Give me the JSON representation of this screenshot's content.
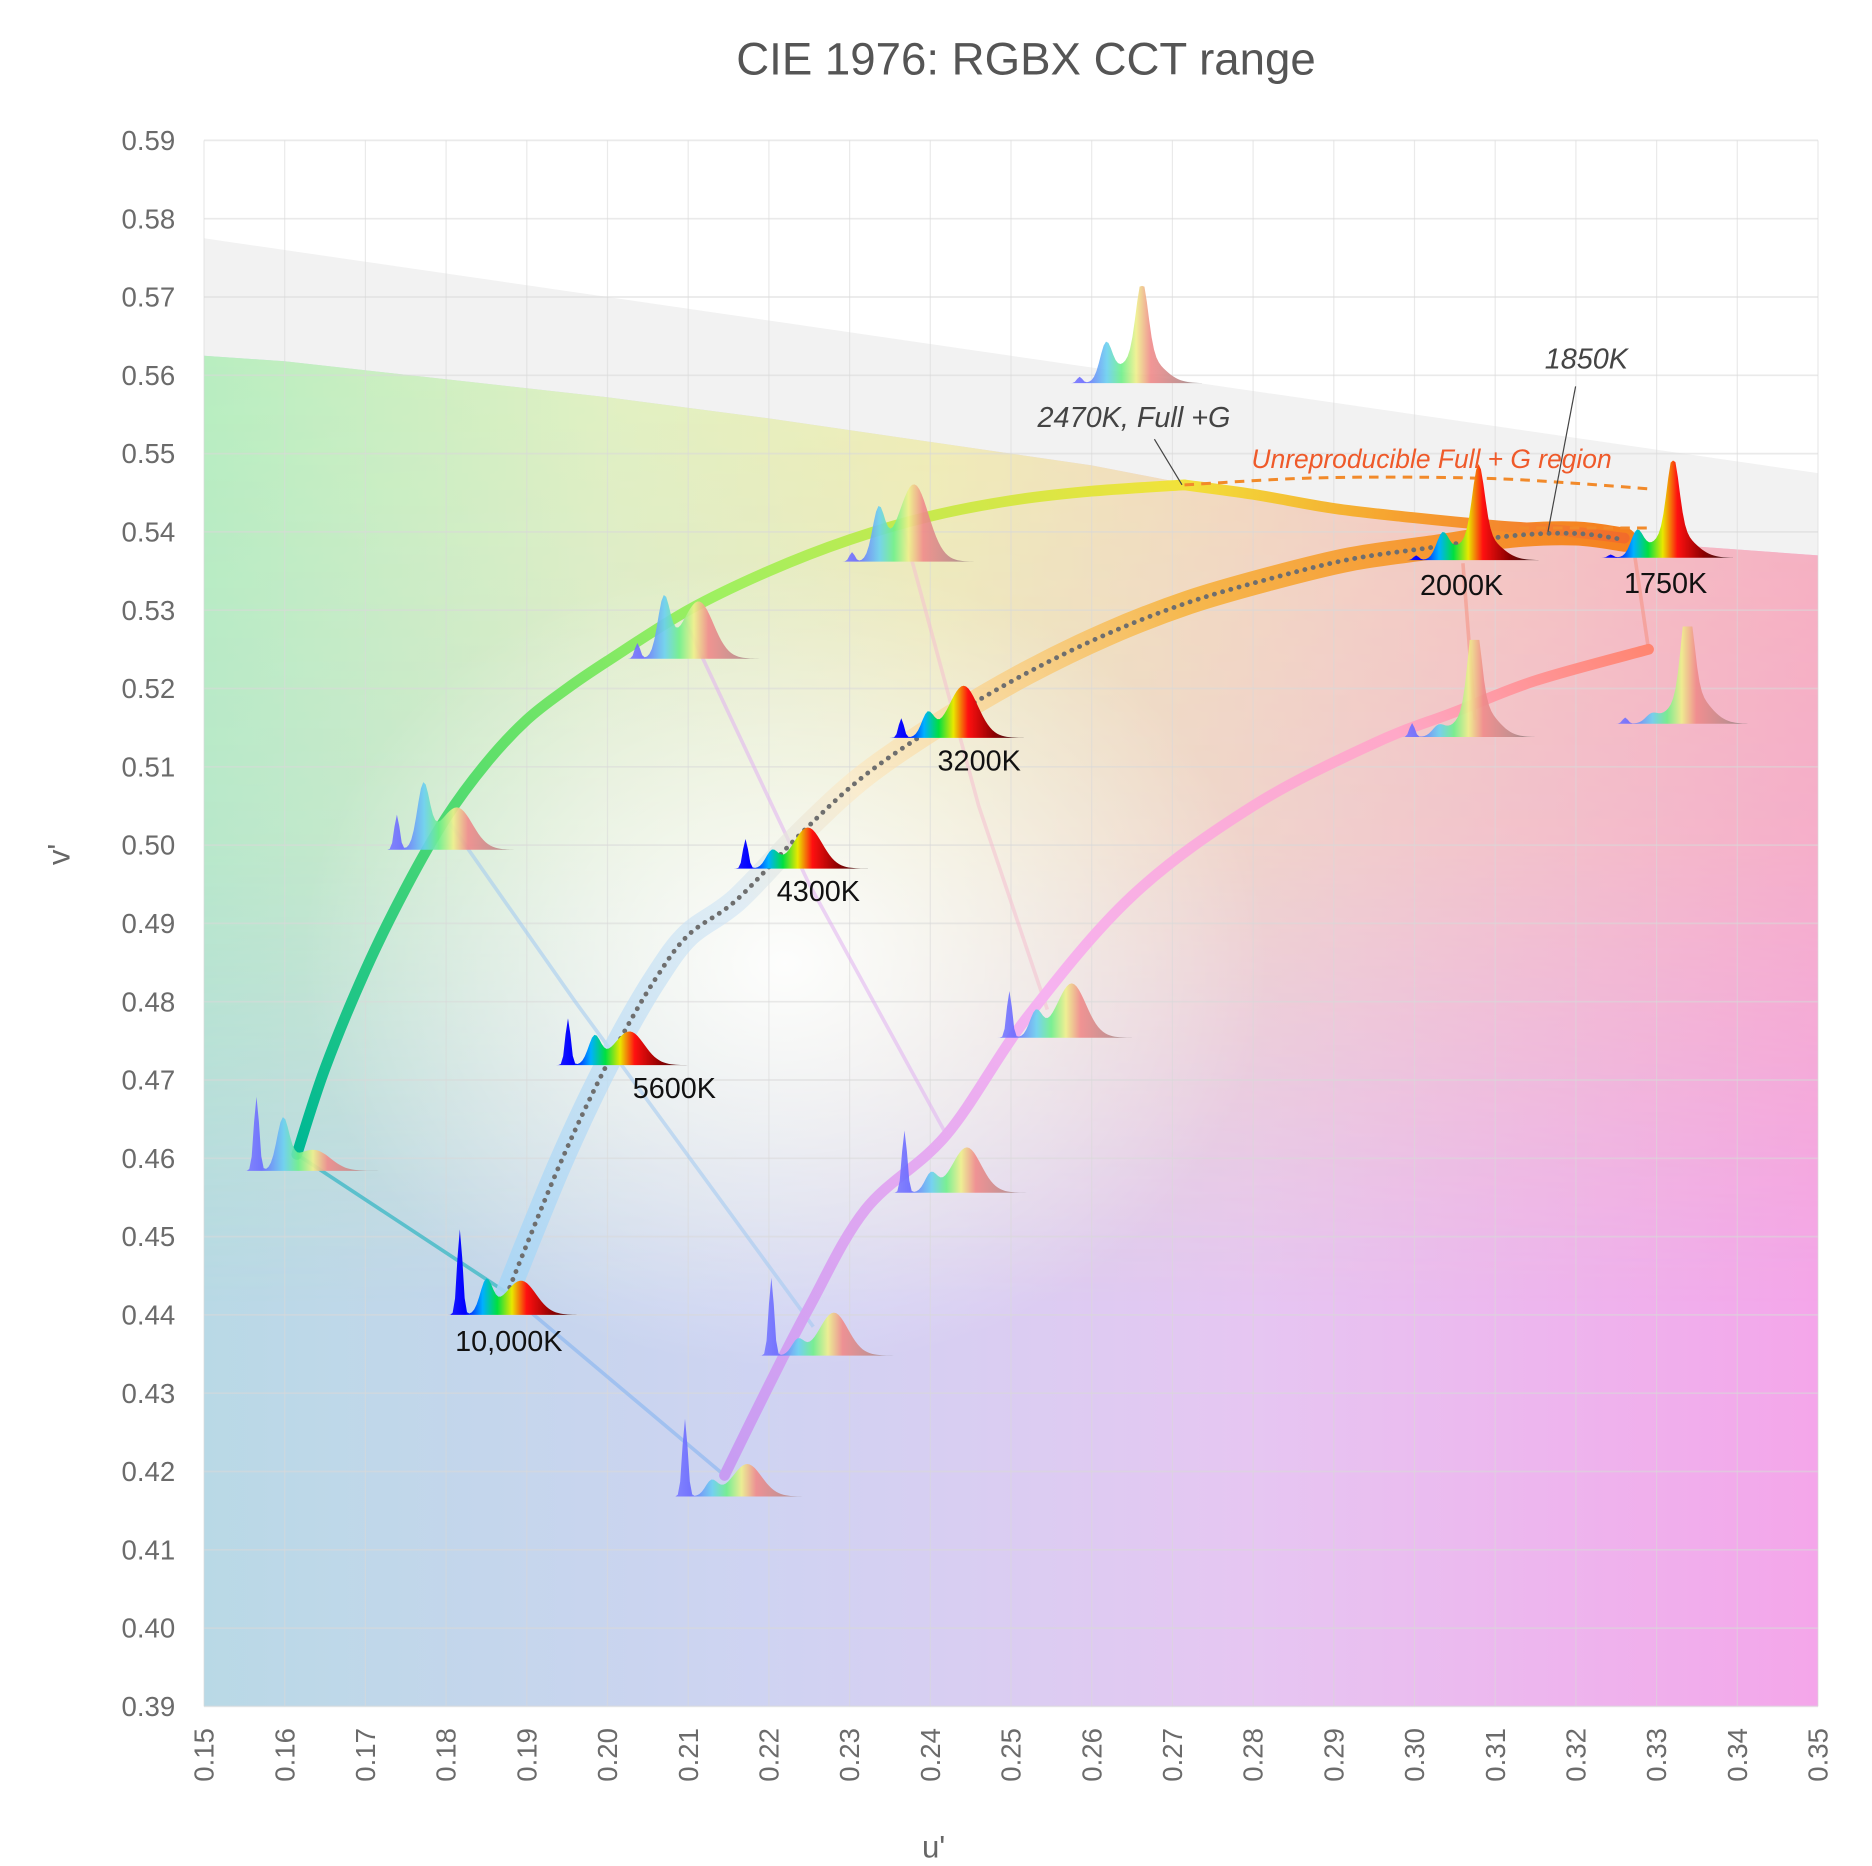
{
  "chart_data": {
    "type": "line",
    "title": "CIE 1976: RGBX CCT range",
    "xlabel": "u'",
    "ylabel": "v'",
    "xlim": [
      0.15,
      0.35
    ],
    "ylim": [
      0.39,
      0.59
    ],
    "grid": true,
    "legend": "none",
    "x_ticks": [
      "0.15",
      "0.16",
      "0.17",
      "0.18",
      "0.19",
      "0.20",
      "0.21",
      "0.22",
      "0.23",
      "0.24",
      "0.25",
      "0.26",
      "0.27",
      "0.28",
      "0.29",
      "0.30",
      "0.31",
      "0.32",
      "0.33",
      "0.34",
      "0.35"
    ],
    "y_ticks": [
      "0.59",
      "0.58",
      "0.57",
      "0.56",
      "0.55",
      "0.54",
      "0.53",
      "0.52",
      "0.51",
      "0.50",
      "0.49",
      "0.48",
      "0.47",
      "0.46",
      "0.45",
      "0.44",
      "0.43",
      "0.42",
      "0.41",
      "0.40",
      "0.39"
    ],
    "regions": {
      "gamut_top_boundary": {
        "u": [
          0.15,
          0.16,
          0.18,
          0.2,
          0.22,
          0.24,
          0.26,
          0.27,
          0.29,
          0.31,
          0.33,
          0.35
        ],
        "v": [
          0.5625,
          0.5618,
          0.5595,
          0.5572,
          0.5545,
          0.5515,
          0.5485,
          0.5465,
          0.543,
          0.54,
          0.5385,
          0.537
        ]
      },
      "unreachable_band_top": {
        "u": [
          0.15,
          0.35
        ],
        "v": [
          0.5775,
          0.5475
        ]
      }
    },
    "series": [
      {
        "key": "full_g",
        "u": [
          0.1615,
          0.165,
          0.17,
          0.175,
          0.18,
          0.185,
          0.19,
          0.195,
          0.2,
          0.21,
          0.22,
          0.23,
          0.24,
          0.25,
          0.26,
          0.2715
        ],
        "v": [
          0.4605,
          0.4715,
          0.484,
          0.4945,
          0.5035,
          0.5105,
          0.516,
          0.52,
          0.5235,
          0.53,
          0.535,
          0.539,
          0.542,
          0.544,
          0.5452,
          0.546
        ]
      },
      {
        "key": "full_g_limit",
        "u": [
          0.2715,
          0.28,
          0.29,
          0.3,
          0.31,
          0.318,
          0.326
        ],
        "v": [
          0.546,
          0.5448,
          0.543,
          0.5418,
          0.5408,
          0.5402,
          0.5392
        ]
      },
      {
        "key": "lower_boundary",
        "u": [
          0.2145,
          0.22,
          0.225,
          0.232,
          0.242,
          0.252,
          0.265,
          0.28,
          0.295,
          0.305,
          0.315,
          0.329
        ],
        "v": [
          0.4195,
          0.431,
          0.441,
          0.4535,
          0.463,
          0.478,
          0.4935,
          0.505,
          0.513,
          0.517,
          0.521,
          0.525
        ]
      },
      {
        "key": "planckian_locus",
        "u": [
          0.1875,
          0.19,
          0.194,
          0.198,
          0.202,
          0.206,
          0.21,
          0.216,
          0.224,
          0.232,
          0.242,
          0.252,
          0.262,
          0.272,
          0.282,
          0.292,
          0.302,
          0.312,
          0.32,
          0.326
        ],
        "v": [
          0.4425,
          0.449,
          0.459,
          0.468,
          0.476,
          0.483,
          0.4885,
          0.493,
          0.5015,
          0.509,
          0.516,
          0.522,
          0.527,
          0.531,
          0.534,
          0.5365,
          0.538,
          0.5395,
          0.5398,
          0.539
        ]
      },
      {
        "key": "unreproducible_boundary",
        "u": [
          0.2715,
          0.285,
          0.297,
          0.31,
          0.32,
          0.329
        ],
        "v": [
          0.546,
          0.5468,
          0.547,
          0.5468,
          0.5462,
          0.5455
        ]
      },
      {
        "key": "unreproducible_boundary_2",
        "u": [
          0.313,
          0.329
        ],
        "v": [
          0.5405,
          0.5405
        ]
      }
    ],
    "annotations": {
      "cct_10000": "10,000K",
      "cct_5600": "5600K",
      "cct_4300": "4300K",
      "cct_3200": "3200K",
      "cct_2000": "2000K",
      "cct_1750": "1750K",
      "cct_1850": "1850K",
      "full_g": "2470K, Full +G",
      "unreproducible": "Unreproducible Full + G region"
    },
    "colors": {
      "full_g_start": "#00b894",
      "full_g_mid": "#7fe860",
      "full_g_end": "#f2e23a",
      "limit_end": "#f26b2a",
      "locus_band": "#f7a928",
      "locus_band_cool": "#a9d6f5",
      "lower_start": "#c79cf2",
      "lower_mid": "#ffaee0",
      "lower_end": "#ff8570",
      "dotted": "#6e6e6e",
      "unreproducible": "#ef5a2a"
    }
  }
}
